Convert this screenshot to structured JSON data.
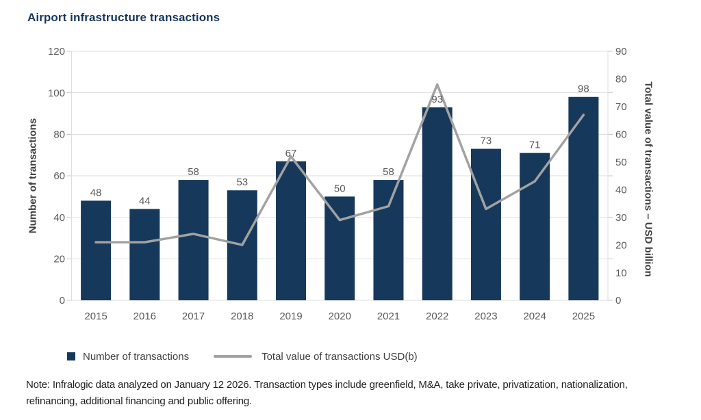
{
  "title": "Airport infrastructure transactions",
  "legend": {
    "bar_label": "Number of transactions",
    "line_label": "Total value of transactions USD(b)"
  },
  "note": "Note: Infralogic data analyzed on January 12 2026. Transaction types include greenfield, M&A, take private, privatization, nationalization, refinancing, additional financing and public offering.",
  "colors": {
    "bar": "#16395B",
    "line": "#A2A2A2",
    "title": "#15365D",
    "axis_title_text": "#3F3F3F",
    "tick_text": "#595959",
    "grid": "#DEDEDE",
    "tick_mark": "#C8C8C8"
  },
  "chart_data": {
    "type": "bar",
    "subtype": "combo-bar-line-dual-axis",
    "title": "Airport infrastructure transactions",
    "categories": [
      "2015",
      "2016",
      "2017",
      "2018",
      "2019",
      "2020",
      "2021",
      "2022",
      "2023",
      "2024",
      "2025"
    ],
    "series": [
      {
        "name": "Number of transactions",
        "type": "bar",
        "axis": "left",
        "values": [
          48,
          44,
          58,
          53,
          67,
          50,
          58,
          93,
          73,
          71,
          98
        ],
        "data_labels": true
      },
      {
        "name": "Total value of transactions USD(b)",
        "type": "line",
        "axis": "right",
        "values": [
          21,
          21,
          24,
          20,
          52,
          29,
          34,
          78,
          33,
          43,
          67
        ],
        "data_labels": false
      }
    ],
    "left_axis": {
      "label": "Number of transactions",
      "min": 0,
      "max": 120,
      "step": 20
    },
    "right_axis": {
      "label": "Total value of transactions – USD billion",
      "min": 0,
      "max": 90,
      "step": 10
    },
    "grid": "horizontal",
    "legend_position": "bottom"
  }
}
